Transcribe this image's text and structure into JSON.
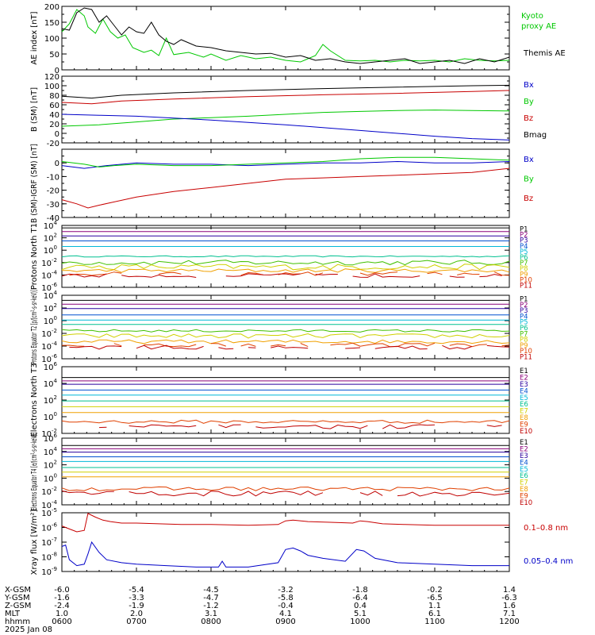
{
  "colors": {
    "black": "#000000",
    "green": "#00c800",
    "blue": "#0000c8",
    "red": "#c80000",
    "p1": "#000000",
    "p2": "#8a007a",
    "p3": "#2a009e",
    "p4": "#0050d0",
    "p5": "#00b8d8",
    "p6": "#00c090",
    "p7": "#40c000",
    "p8": "#d0d000",
    "p9": "#f0a000",
    "p10": "#e04000",
    "p11": "#c00000"
  },
  "time_axis": {
    "date_label": "2025 Jan 08",
    "row_labels": [
      "X-GSM",
      "Y-GSM",
      "Z-GSM",
      "MLT",
      "hhmm"
    ],
    "columns": [
      {
        "hhmm": "0600",
        "x": "-6.0",
        "y": "-1.6",
        "z": "-2.4",
        "mlt": "1.0"
      },
      {
        "hhmm": "0700",
        "x": "-5.4",
        "y": "-3.3",
        "z": "-1.9",
        "mlt": "2.0"
      },
      {
        "hhmm": "0800",
        "x": "-4.5",
        "y": "-4.7",
        "z": "-1.2",
        "mlt": "3.1"
      },
      {
        "hhmm": "0900",
        "x": "-3.2",
        "y": "-5.8",
        "z": "-0.4",
        "mlt": "4.1"
      },
      {
        "hhmm": "1000",
        "x": "-1.8",
        "y": "-6.4",
        "z": "0.4",
        "mlt": "5.1"
      },
      {
        "hhmm": "1100",
        "x": "-0.2",
        "y": "-6.5",
        "z": "1.1",
        "mlt": "6.1"
      },
      {
        "hhmm": "1200",
        "x": "1.4",
        "y": "-6.3",
        "z": "1.6",
        "mlt": "7.1"
      }
    ]
  },
  "chart_data": [
    {
      "type": "line",
      "ylabel": "AE index [nT]",
      "ylim": [
        0,
        200
      ],
      "log": false,
      "ticks": [
        "0",
        "50",
        "100",
        "150",
        "200"
      ],
      "legend": [
        {
          "text": "Kyoto",
          "color": "green"
        },
        {
          "text": "proxy AE",
          "color": "green"
        },
        {
          "text": "Themis AE",
          "color": "black"
        }
      ],
      "series": [
        {
          "name": "Kyoto proxy AE",
          "color": "green",
          "x": [
            6.0,
            6.1,
            6.2,
            6.3,
            6.35,
            6.45,
            6.55,
            6.65,
            6.75,
            6.85,
            6.95,
            7.1,
            7.2,
            7.3,
            7.4,
            7.5,
            7.7,
            7.9,
            8.0,
            8.2,
            8.4,
            8.6,
            8.8,
            9.0,
            9.2,
            9.4,
            9.5,
            9.6,
            9.8,
            10.0,
            10.2,
            10.4,
            10.6,
            10.8,
            11.0,
            11.2,
            11.4,
            11.6,
            11.8,
            12.0
          ],
          "y": [
            120,
            145,
            190,
            170,
            135,
            115,
            160,
            120,
            100,
            110,
            70,
            55,
            62,
            45,
            100,
            48,
            55,
            40,
            50,
            30,
            45,
            35,
            40,
            30,
            25,
            45,
            80,
            60,
            30,
            28,
            30,
            25,
            30,
            28,
            30,
            25,
            35,
            30,
            28,
            30
          ]
        },
        {
          "name": "Themis AE",
          "color": "black",
          "x": [
            6.0,
            6.1,
            6.2,
            6.3,
            6.4,
            6.5,
            6.6,
            6.7,
            6.8,
            6.9,
            7.0,
            7.1,
            7.2,
            7.3,
            7.4,
            7.5,
            7.6,
            7.8,
            8.0,
            8.2,
            8.4,
            8.6,
            8.8,
            9.0,
            9.2,
            9.4,
            9.6,
            9.8,
            10.0,
            10.2,
            10.4,
            10.6,
            10.8,
            11.0,
            11.2,
            11.4,
            11.6,
            11.8,
            12.0
          ],
          "y": [
            130,
            125,
            180,
            195,
            190,
            150,
            170,
            140,
            110,
            135,
            120,
            115,
            150,
            110,
            90,
            80,
            95,
            75,
            70,
            60,
            55,
            50,
            52,
            40,
            45,
            30,
            35,
            25,
            20,
            25,
            30,
            35,
            20,
            25,
            30,
            20,
            35,
            25,
            40
          ]
        }
      ]
    },
    {
      "type": "line",
      "ylabel": "B (SM) [nT]",
      "ylim": [
        -20,
        120
      ],
      "log": false,
      "ticks": [
        "-20",
        "0",
        "20",
        "40",
        "60",
        "80",
        "100",
        "120"
      ],
      "legend": [
        {
          "text": "Bx",
          "color": "blue"
        },
        {
          "text": "By",
          "color": "green"
        },
        {
          "text": "Bz",
          "color": "red"
        },
        {
          "text": "Bmag",
          "color": "black"
        }
      ],
      "series": [
        {
          "name": "Bmag",
          "color": "black",
          "x": [
            6.0,
            6.4,
            6.8,
            7.5,
            8.5,
            9.5,
            10.5,
            11.5,
            12.0
          ],
          "y": [
            78,
            74,
            80,
            85,
            90,
            94,
            97,
            100,
            101
          ]
        },
        {
          "name": "Bz",
          "color": "red",
          "x": [
            6.0,
            6.4,
            6.8,
            7.5,
            8.5,
            9.5,
            10.5,
            11.5,
            12.0
          ],
          "y": [
            65,
            62,
            68,
            72,
            77,
            81,
            84,
            88,
            90
          ]
        },
        {
          "name": "By",
          "color": "green",
          "x": [
            6.0,
            6.5,
            7.0,
            7.5,
            8.0,
            8.5,
            9.0,
            9.5,
            10.0,
            10.5,
            11.0,
            11.5,
            12.0
          ],
          "y": [
            15,
            18,
            24,
            30,
            33,
            36,
            40,
            44,
            46,
            48,
            49,
            48,
            47
          ]
        },
        {
          "name": "Bx",
          "color": "blue",
          "x": [
            6.0,
            6.5,
            7.0,
            7.5,
            8.0,
            8.5,
            9.0,
            9.5,
            10.0,
            10.5,
            11.0,
            11.5,
            12.0
          ],
          "y": [
            40,
            38,
            36,
            32,
            28,
            23,
            18,
            12,
            6,
            0,
            -6,
            -11,
            -14
          ]
        }
      ]
    },
    {
      "type": "line",
      "ylabel": "B (SM)-IGRF (SM) [nT]",
      "ylim": [
        -40,
        10
      ],
      "log": false,
      "ticks": [
        "-40",
        "-30",
        "-20",
        "-10",
        "0"
      ],
      "legend": [
        {
          "text": "Bx",
          "color": "blue"
        },
        {
          "text": "By",
          "color": "green"
        },
        {
          "text": "Bz",
          "color": "red"
        }
      ],
      "series": [
        {
          "name": "Bx",
          "color": "blue",
          "x": [
            6.0,
            6.3,
            6.6,
            7.0,
            7.5,
            8.0,
            8.5,
            9.0,
            9.5,
            10.0,
            10.5,
            11.0,
            11.5,
            12.0
          ],
          "y": [
            -2,
            -4,
            -2,
            0,
            -1,
            -1,
            -2,
            -1,
            0,
            0,
            1,
            0,
            0,
            1
          ]
        },
        {
          "name": "By",
          "color": "green",
          "x": [
            6.0,
            6.3,
            6.5,
            6.7,
            7.0,
            7.5,
            8.0,
            8.5,
            9.0,
            9.5,
            10.0,
            10.5,
            11.0,
            11.5,
            12.0
          ],
          "y": [
            1,
            -1,
            -3,
            -2,
            -1,
            -2,
            -2,
            -1,
            0,
            1,
            3,
            4,
            4,
            3,
            2
          ]
        },
        {
          "name": "Bz",
          "color": "red",
          "x": [
            6.0,
            6.2,
            6.35,
            6.5,
            7.0,
            7.5,
            8.0,
            8.5,
            9.0,
            9.5,
            10.0,
            10.5,
            11.0,
            11.5,
            12.0
          ],
          "y": [
            -27,
            -30,
            -33,
            -31,
            -25,
            -21,
            -18,
            -15,
            -12,
            -11,
            -10,
            -9,
            -8,
            -7,
            -4
          ]
        }
      ]
    },
    {
      "type": "line",
      "ylabel": "Protons North T1",
      "ylim": [
        -6,
        4
      ],
      "log": true,
      "ticks": [
        "-6",
        "-4",
        "-2",
        "0",
        "2",
        "4"
      ],
      "legend": [
        {
          "text": "P1",
          "color": "p1"
        },
        {
          "text": "P2",
          "color": "p2"
        },
        {
          "text": "P3",
          "color": "p3"
        },
        {
          "text": "P4",
          "color": "p4"
        },
        {
          "text": "P5",
          "color": "p5"
        },
        {
          "text": "P6",
          "color": "p6"
        },
        {
          "text": "P7",
          "color": "p7"
        },
        {
          "text": "P8",
          "color": "p8"
        },
        {
          "text": "P9",
          "color": "p9"
        },
        {
          "text": "P10",
          "color": "p10"
        },
        {
          "text": "P11",
          "color": "p11"
        }
      ],
      "levels": [
        3.6,
        3.0,
        2.3,
        1.5,
        0.6,
        -1.0,
        -2.0,
        -2.7,
        -3.3,
        -3.8,
        -4.1
      ],
      "noise": [
        0,
        0,
        0,
        0,
        0,
        0.1,
        0.4,
        0.45,
        0.3,
        0.3,
        0.3
      ],
      "gap_rows": [
        9,
        10
      ]
    },
    {
      "type": "line",
      "ylabel": "Protons Equator T2 [p/(cm²-s-sr-keV)]",
      "ylim": [
        -6,
        4
      ],
      "log": true,
      "ticks": [
        "-6",
        "-4",
        "-2",
        "0",
        "2",
        "4"
      ],
      "legend": [
        {
          "text": "P1",
          "color": "p1"
        },
        {
          "text": "P2",
          "color": "p2"
        },
        {
          "text": "P3",
          "color": "p3"
        },
        {
          "text": "P4",
          "color": "p4"
        },
        {
          "text": "P5",
          "color": "p5"
        },
        {
          "text": "P6",
          "color": "p6"
        },
        {
          "text": "P7",
          "color": "p7"
        },
        {
          "text": "P8",
          "color": "p8"
        },
        {
          "text": "P9",
          "color": "p9"
        },
        {
          "text": "P10",
          "color": "p10"
        },
        {
          "text": "P11",
          "color": "p11"
        }
      ],
      "levels": [
        3.2,
        2.6,
        1.9,
        0.9,
        0.1,
        -0.6,
        -1.6,
        -2.4,
        -3.3,
        -3.8,
        -4.2
      ],
      "noise": [
        0,
        0,
        0,
        0,
        0,
        0,
        0.2,
        0.35,
        0.3,
        0.3,
        0.3
      ],
      "gap_rows": [
        9,
        10
      ]
    },
    {
      "type": "line",
      "ylabel": "Electrons North T3",
      "ylim": [
        -2,
        6
      ],
      "log": true,
      "ticks": [
        "-2",
        "0",
        "2",
        "4",
        "6"
      ],
      "legend": [
        {
          "text": "E1",
          "color": "p1"
        },
        {
          "text": "E2",
          "color": "p2"
        },
        {
          "text": "E3",
          "color": "p3"
        },
        {
          "text": "E4",
          "color": "p4"
        },
        {
          "text": "E5",
          "color": "p5"
        },
        {
          "text": "E6",
          "color": "p6"
        },
        {
          "text": "E7",
          "color": "p8"
        },
        {
          "text": "E8",
          "color": "p9"
        },
        {
          "text": "E9",
          "color": "p10"
        },
        {
          "text": "E10",
          "color": "p11"
        }
      ],
      "levels": [
        4.7,
        4.3,
        3.9,
        3.2,
        2.6,
        1.9,
        1.2,
        0.5,
        -0.6,
        -1.2
      ],
      "noise": [
        0,
        0,
        0,
        0,
        0,
        0,
        0,
        0,
        0.2,
        0.25
      ],
      "gap_rows": [
        9
      ]
    },
    {
      "type": "line",
      "ylabel": "Electrons Equator T4 [e/(cm²-s-sr-keV)]",
      "ylim": [
        -4,
        6
      ],
      "log": true,
      "ticks": [
        "-4",
        "-2",
        "0",
        "2",
        "4",
        "6"
      ],
      "legend": [
        {
          "text": "E1",
          "color": "p1"
        },
        {
          "text": "E2",
          "color": "p2"
        },
        {
          "text": "E3",
          "color": "p3"
        },
        {
          "text": "E4",
          "color": "p4"
        },
        {
          "text": "E5",
          "color": "p5"
        },
        {
          "text": "E6",
          "color": "p6"
        },
        {
          "text": "E7",
          "color": "p8"
        },
        {
          "text": "E8",
          "color": "p9"
        },
        {
          "text": "E9",
          "color": "p10"
        },
        {
          "text": "E10",
          "color": "p11"
        }
      ],
      "levels": [
        4.9,
        4.4,
        3.9,
        3.2,
        2.5,
        1.6,
        0.9,
        0.2,
        -1.6,
        -2.3
      ],
      "noise": [
        0,
        0,
        0,
        0,
        0,
        0,
        0,
        0,
        0.3,
        0.4
      ],
      "gap_rows": [
        9
      ]
    },
    {
      "type": "line",
      "ylabel": "Xray flux [W/m²]",
      "ylim": [
        -9,
        -5
      ],
      "log": true,
      "ticks": [
        "-9",
        "-8",
        "-7",
        "-6",
        "-5"
      ],
      "legend": [
        {
          "text": "0.1–0.8 nm",
          "color": "red"
        },
        {
          "text": "0.05–0.4 nm",
          "color": "blue"
        }
      ],
      "series": [
        {
          "name": "0.1–0.8 nm",
          "color": "red",
          "x": [
            6.0,
            6.1,
            6.2,
            6.3,
            6.35,
            6.45,
            6.55,
            6.65,
            6.8,
            7.0,
            7.3,
            7.6,
            8.0,
            8.5,
            8.9,
            9.0,
            9.1,
            9.3,
            9.6,
            9.9,
            10.0,
            10.1,
            10.3,
            10.6,
            11.0,
            11.5,
            12.0
          ],
          "y": [
            -5.9,
            -6.1,
            -6.3,
            -6.2,
            -5.05,
            -5.3,
            -5.5,
            -5.6,
            -5.7,
            -5.7,
            -5.75,
            -5.8,
            -5.8,
            -5.85,
            -5.8,
            -5.55,
            -5.5,
            -5.6,
            -5.65,
            -5.7,
            -5.55,
            -5.6,
            -5.75,
            -5.8,
            -5.85,
            -5.85,
            -5.85
          ]
        },
        {
          "name": "0.05–0.4 nm",
          "color": "blue",
          "x": [
            6.0,
            6.05,
            6.1,
            6.2,
            6.3,
            6.35,
            6.4,
            6.5,
            6.6,
            6.8,
            7.0,
            7.4,
            7.8,
            8.1,
            8.15,
            8.2,
            8.5,
            8.9,
            9.0,
            9.1,
            9.2,
            9.3,
            9.5,
            9.8,
            9.95,
            10.05,
            10.2,
            10.5,
            11.0,
            11.5,
            12.0
          ],
          "y": [
            -7.3,
            -7.2,
            -8.2,
            -8.6,
            -8.5,
            -7.8,
            -7.0,
            -7.7,
            -8.2,
            -8.4,
            -8.5,
            -8.6,
            -8.7,
            -8.7,
            -8.3,
            -8.7,
            -8.7,
            -8.4,
            -7.5,
            -7.4,
            -7.6,
            -7.9,
            -8.1,
            -8.3,
            -7.5,
            -7.6,
            -8.1,
            -8.4,
            -8.5,
            -8.6,
            -8.6
          ]
        }
      ]
    }
  ]
}
